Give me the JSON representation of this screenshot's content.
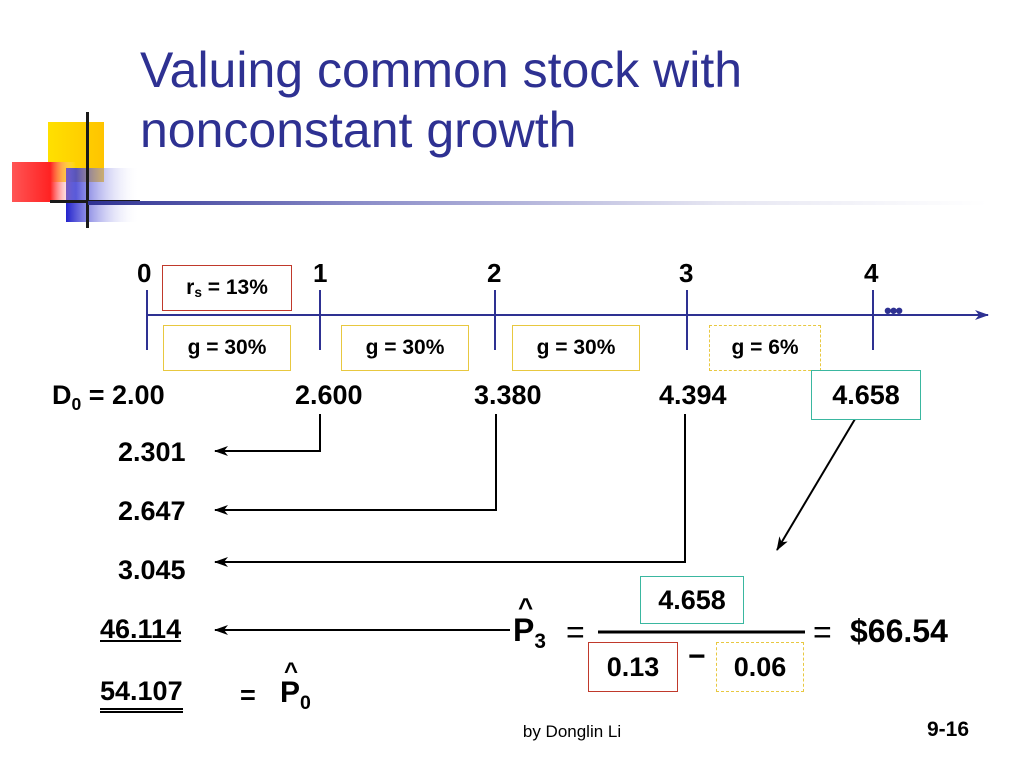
{
  "slide": {
    "title_line1": "Valuing common stock with",
    "title_line2": "nonconstant growth",
    "footer_author": "by Donglin Li",
    "slide_number": "9-16"
  },
  "timeline": {
    "ticks": [
      "0",
      "1",
      "2",
      "3",
      "4"
    ],
    "ellipsis": "•••",
    "rate_box": {
      "symbol": "r",
      "subscript": "s",
      "value": " = 13%"
    },
    "growth_boxes": [
      "g = 30%",
      "g = 30%",
      "g = 30%",
      "g = 6%"
    ]
  },
  "dividends": {
    "d0_symbol": "D",
    "d0_subscript": "0",
    "d0_value": " = 2.00",
    "d1": "2.600",
    "d2": "3.380",
    "d3": "4.394",
    "d4": "4.658"
  },
  "present_values": {
    "pv1": "2.301",
    "pv2": "2.647",
    "pv3": "3.045",
    "pv_terminal": "46.114",
    "total": "54.107",
    "equals": "=",
    "price_symbol": "P",
    "price_hat": "^",
    "price_subscript": "0"
  },
  "formula": {
    "lhs_symbol": "P",
    "lhs_hat": "^",
    "lhs_subscript": "3",
    "equals": "=",
    "numerator": "4.658",
    "denom_r": "0.13",
    "minus": "−",
    "denom_g": "0.06",
    "result_equals": "=",
    "result": "$66.54"
  },
  "colors": {
    "title": "#2e3192",
    "timeline": "#2e3192",
    "deco_yellow": "#ffd200",
    "deco_blue": "#3333cc",
    "deco_red": "#ff3333",
    "box_yellow": "#e8c840",
    "box_red": "#c0392b",
    "box_green": "#3ab7a0"
  }
}
